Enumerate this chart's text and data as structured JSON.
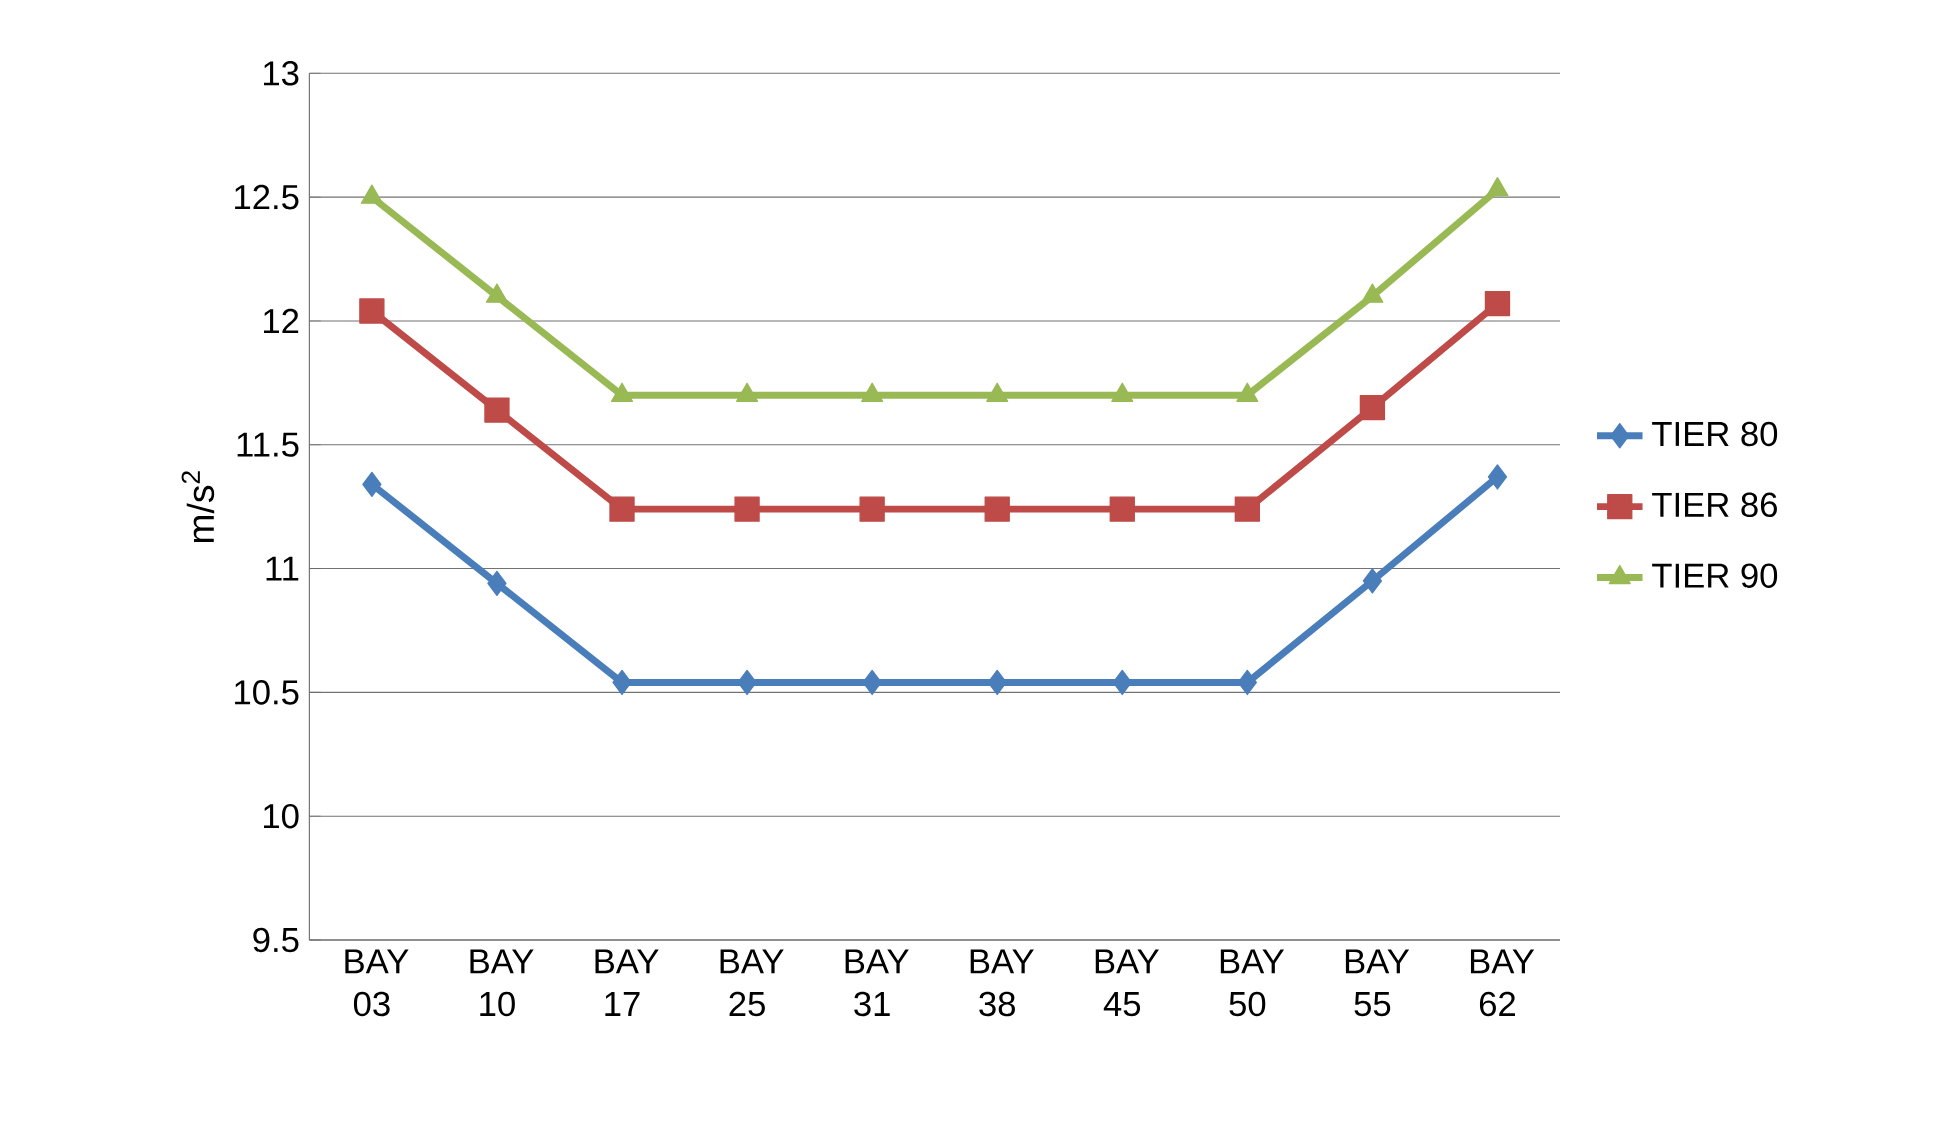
{
  "chart_data": {
    "type": "line",
    "ylabel": "m/s$^{2}$",
    "categories": [
      "BAY 03",
      "BAY 10",
      "BAY 17",
      "BAY 25",
      "BAY 31",
      "BAY 38",
      "BAY 45",
      "BAY 50",
      "BAY 55",
      "BAY 62"
    ],
    "series": [
      {
        "name": "TIER 80",
        "color": "#4a7ebb",
        "marker": "diamond",
        "values": [
          11.34,
          10.94,
          10.54,
          10.54,
          10.54,
          10.54,
          10.54,
          10.54,
          10.95,
          11.37
        ]
      },
      {
        "name": "TIER 86",
        "color": "#be4b48",
        "marker": "square",
        "values": [
          12.04,
          11.64,
          11.24,
          11.24,
          11.24,
          11.24,
          11.24,
          11.24,
          11.65,
          12.07
        ]
      },
      {
        "name": "TIER 90",
        "color": "#98b954",
        "marker": "triangle",
        "values": [
          12.5,
          12.1,
          11.7,
          11.7,
          11.7,
          11.7,
          11.7,
          11.7,
          12.1,
          12.53
        ]
      }
    ],
    "ylim": [
      9.5,
      13
    ],
    "yticks": [
      9.5,
      10,
      10.5,
      11,
      11.5,
      12,
      12.5,
      13
    ],
    "grid": "y",
    "legend": "right"
  }
}
